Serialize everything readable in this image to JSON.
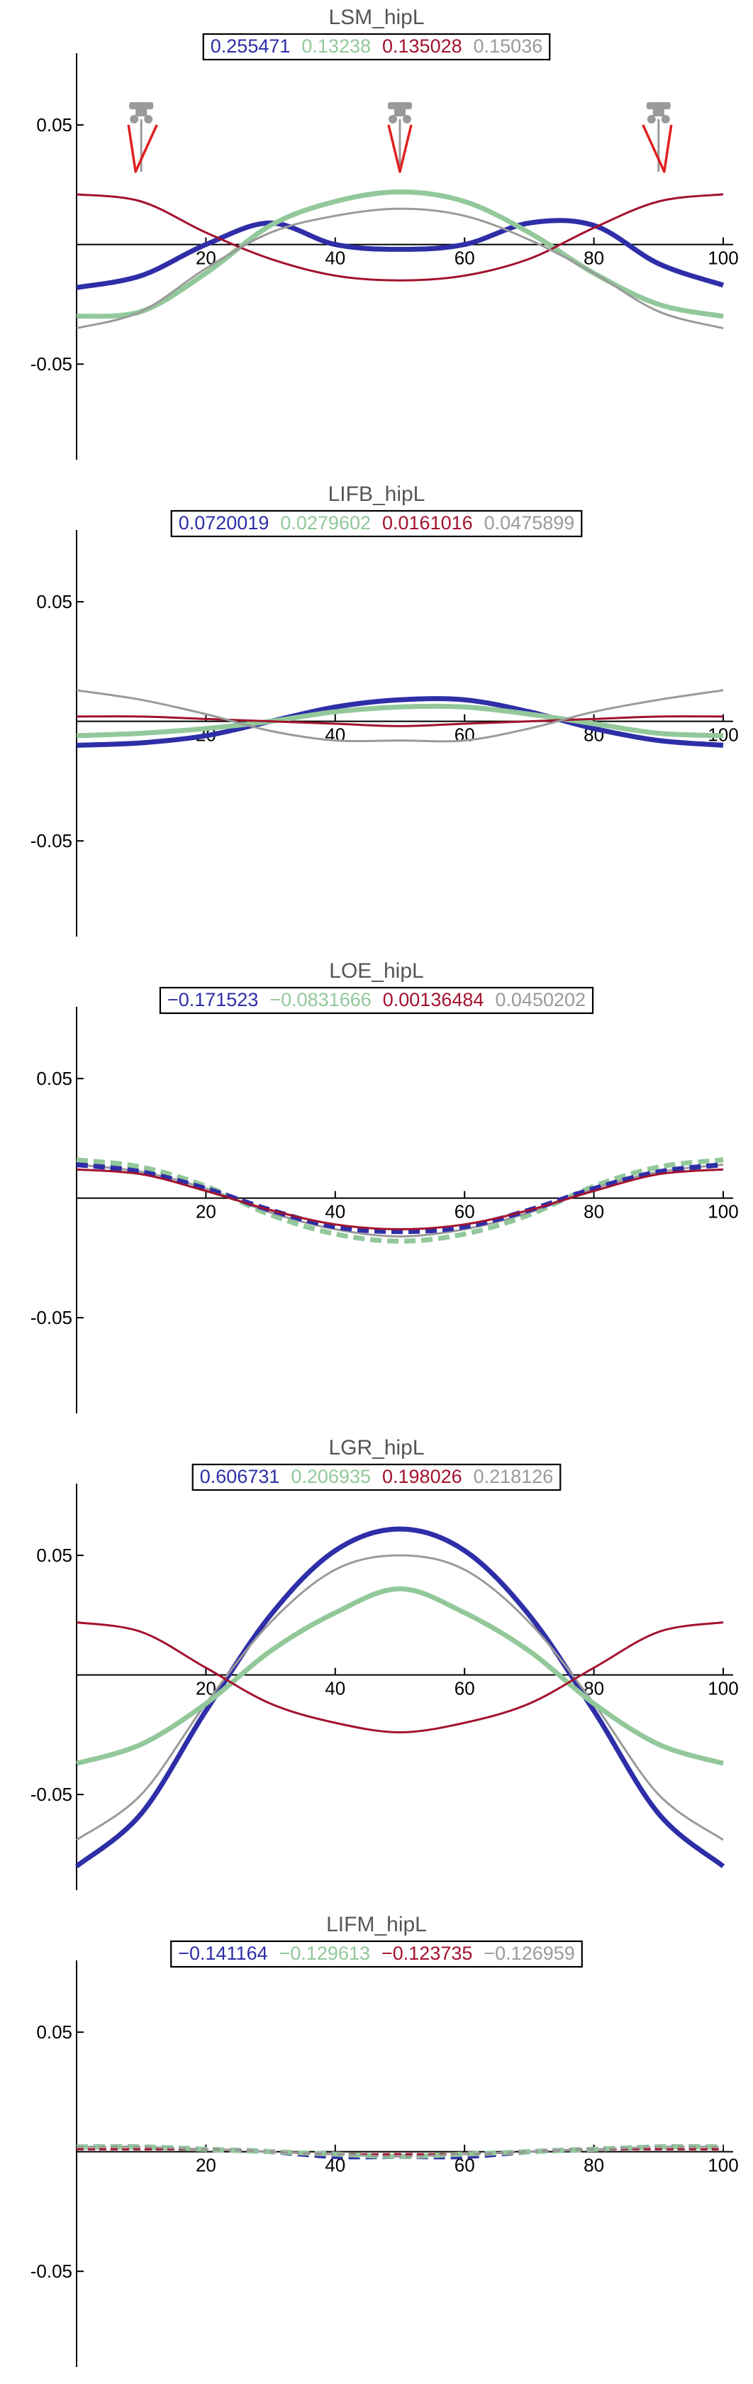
{
  "colors": {
    "blue": "#2e2ea8",
    "green": "#92c89a",
    "red": "#a3122e",
    "gray": "#9a9a9a",
    "axis": "#000000",
    "title": "#555555"
  },
  "chart_data": [
    {
      "type": "line",
      "title": "LSM_hipL",
      "legend": [
        "0.255471",
        "0.13238",
        "0.135028",
        "0.15036"
      ],
      "xlim": [
        0,
        100
      ],
      "ylim": [
        -0.09,
        0.08
      ],
      "xticks": [
        20,
        40,
        60,
        80,
        100
      ],
      "yticks": [
        0.05,
        -0.05
      ],
      "ytick_labels": [
        "0.05",
        "-0.05"
      ],
      "icons": [
        "stance-leg-icon",
        "stance-leg-icon",
        "stance-leg-icon"
      ],
      "x": [
        0,
        10,
        20,
        30,
        40,
        50,
        60,
        70,
        80,
        90,
        100
      ],
      "series": [
        {
          "color": "blue",
          "style": "solid",
          "width": "thick",
          "values": [
            -0.018,
            -0.013,
            0.0,
            0.009,
            0.0,
            -0.002,
            0.0,
            0.009,
            0.008,
            -0.008,
            -0.017
          ]
        },
        {
          "color": "green",
          "style": "solid",
          "width": "thick",
          "values": [
            -0.03,
            -0.028,
            -0.012,
            0.008,
            0.018,
            0.022,
            0.018,
            0.005,
            -0.012,
            -0.025,
            -0.03
          ]
        },
        {
          "color": "red",
          "style": "solid",
          "width": "thin",
          "values": [
            0.021,
            0.018,
            0.005,
            -0.006,
            -0.013,
            -0.015,
            -0.013,
            -0.006,
            0.007,
            0.018,
            0.021
          ]
        },
        {
          "color": "gray",
          "style": "solid",
          "width": "thin",
          "values": [
            -0.035,
            -0.028,
            -0.01,
            0.005,
            0.012,
            0.015,
            0.012,
            0.002,
            -0.012,
            -0.028,
            -0.035
          ]
        }
      ]
    },
    {
      "type": "line",
      "title": "LIFB_hipL",
      "legend": [
        "0.0720019",
        "0.0279602",
        "0.0161016",
        "0.0475899"
      ],
      "xlim": [
        0,
        100
      ],
      "ylim": [
        -0.09,
        0.08
      ],
      "xticks": [
        20,
        40,
        60,
        80,
        100
      ],
      "yticks": [
        0.05,
        -0.05
      ],
      "ytick_labels": [
        "0.05",
        "-0.05"
      ],
      "x": [
        0,
        10,
        20,
        30,
        40,
        50,
        60,
        70,
        80,
        90,
        100
      ],
      "series": [
        {
          "color": "blue",
          "style": "solid",
          "width": "thick",
          "values": [
            -0.01,
            -0.009,
            -0.006,
            0.0,
            0.006,
            0.009,
            0.009,
            0.004,
            -0.003,
            -0.008,
            -0.01
          ]
        },
        {
          "color": "green",
          "style": "solid",
          "width": "thick",
          "values": [
            -0.006,
            -0.005,
            -0.003,
            0.0,
            0.004,
            0.006,
            0.006,
            0.003,
            -0.001,
            -0.005,
            -0.006
          ]
        },
        {
          "color": "red",
          "style": "solid",
          "width": "thin",
          "values": [
            0.002,
            0.002,
            0.001,
            0.0,
            -0.001,
            -0.002,
            -0.001,
            0.0,
            0.001,
            0.002,
            0.002
          ]
        },
        {
          "color": "gray",
          "style": "solid",
          "width": "thin",
          "values": [
            0.013,
            0.009,
            0.003,
            -0.004,
            -0.008,
            -0.008,
            -0.008,
            -0.003,
            0.004,
            0.009,
            0.013
          ]
        }
      ]
    },
    {
      "type": "line",
      "title": "LOE_hipL",
      "legend": [
        "−0.171523",
        "−0.0831666",
        "0.00136484",
        "0.0450202"
      ],
      "xlim": [
        0,
        100
      ],
      "ylim": [
        -0.09,
        0.08
      ],
      "xticks": [
        20,
        40,
        60,
        80,
        100
      ],
      "yticks": [
        0.05,
        -0.05
      ],
      "ytick_labels": [
        "0.05",
        "-0.05"
      ],
      "x": [
        0,
        10,
        20,
        30,
        40,
        50,
        60,
        70,
        80,
        90,
        100
      ],
      "series": [
        {
          "color": "green",
          "style": "dashed",
          "width": "thick",
          "values": [
            0.016,
            0.013,
            0.005,
            -0.007,
            -0.015,
            -0.018,
            -0.015,
            -0.007,
            0.005,
            0.013,
            0.016
          ]
        },
        {
          "color": "gray",
          "style": "solid",
          "width": "thin",
          "values": [
            0.014,
            0.011,
            0.004,
            -0.006,
            -0.013,
            -0.016,
            -0.013,
            -0.006,
            0.004,
            0.011,
            0.014
          ]
        },
        {
          "color": "blue",
          "style": "dashed",
          "width": "thick",
          "values": [
            0.014,
            0.011,
            0.004,
            -0.005,
            -0.012,
            -0.014,
            -0.012,
            -0.005,
            0.004,
            0.011,
            0.014
          ]
        },
        {
          "color": "red",
          "style": "solid",
          "width": "thin",
          "values": [
            0.012,
            0.01,
            0.003,
            -0.005,
            -0.011,
            -0.013,
            -0.011,
            -0.005,
            0.003,
            0.01,
            0.012
          ]
        }
      ]
    },
    {
      "type": "line",
      "title": "LGR_hipL",
      "legend": [
        "0.606731",
        "0.206935",
        "0.198026",
        "0.218126"
      ],
      "xlim": [
        0,
        100
      ],
      "ylim": [
        -0.09,
        0.08
      ],
      "xticks": [
        20,
        40,
        60,
        80,
        100
      ],
      "yticks": [
        0.05,
        -0.05
      ],
      "ytick_labels": [
        "0.05",
        "-0.05"
      ],
      "x": [
        0,
        10,
        20,
        30,
        40,
        50,
        60,
        70,
        80,
        90,
        100
      ],
      "series": [
        {
          "color": "blue",
          "style": "solid",
          "width": "thick",
          "values": [
            -0.08,
            -0.058,
            -0.015,
            0.025,
            0.052,
            0.061,
            0.052,
            0.025,
            -0.015,
            -0.058,
            -0.08
          ]
        },
        {
          "color": "gray",
          "style": "solid",
          "width": "thin",
          "values": [
            -0.069,
            -0.05,
            -0.012,
            0.022,
            0.044,
            0.05,
            0.044,
            0.022,
            -0.012,
            -0.05,
            -0.069
          ]
        },
        {
          "color": "green",
          "style": "solid",
          "width": "thick",
          "values": [
            -0.037,
            -0.029,
            -0.012,
            0.01,
            0.026,
            0.036,
            0.026,
            0.01,
            -0.012,
            -0.029,
            -0.037
          ]
        },
        {
          "color": "red",
          "style": "solid",
          "width": "thin",
          "values": [
            0.022,
            0.018,
            0.003,
            -0.012,
            -0.02,
            -0.024,
            -0.02,
            -0.012,
            0.003,
            0.018,
            0.022
          ]
        }
      ]
    },
    {
      "type": "line",
      "title": "LIFM_hipL",
      "legend": [
        "−0.141164",
        "−0.129613",
        "−0.123735",
        "−0.126959"
      ],
      "xlim": [
        0,
        100
      ],
      "ylim": [
        -0.09,
        0.08
      ],
      "xticks": [
        20,
        40,
        60,
        80,
        100
      ],
      "yticks": [
        0.05,
        -0.05
      ],
      "ytick_labels": [
        "0.05",
        "-0.05"
      ],
      "x": [
        0,
        10,
        20,
        30,
        40,
        50,
        60,
        70,
        80,
        90,
        100
      ],
      "series": [
        {
          "color": "blue",
          "style": "dashed",
          "width": "thick",
          "values": [
            0.002,
            0.002,
            0.001,
            0.0,
            -0.002,
            -0.002,
            -0.002,
            0.0,
            0.001,
            0.002,
            0.002
          ]
        },
        {
          "color": "green",
          "style": "dashed",
          "width": "thick",
          "values": [
            0.002,
            0.002,
            0.001,
            0.0,
            -0.001,
            -0.002,
            -0.001,
            0.0,
            0.001,
            0.002,
            0.002
          ]
        },
        {
          "color": "red",
          "style": "dashed",
          "width": "thin",
          "values": [
            0.001,
            0.001,
            0.001,
            0.0,
            -0.001,
            -0.001,
            -0.001,
            0.0,
            0.001,
            0.001,
            0.001
          ]
        },
        {
          "color": "gray",
          "style": "dashed",
          "width": "thin",
          "values": [
            0.002,
            0.002,
            0.001,
            0.0,
            -0.001,
            -0.002,
            -0.001,
            0.0,
            0.001,
            0.002,
            0.002
          ]
        }
      ]
    }
  ]
}
